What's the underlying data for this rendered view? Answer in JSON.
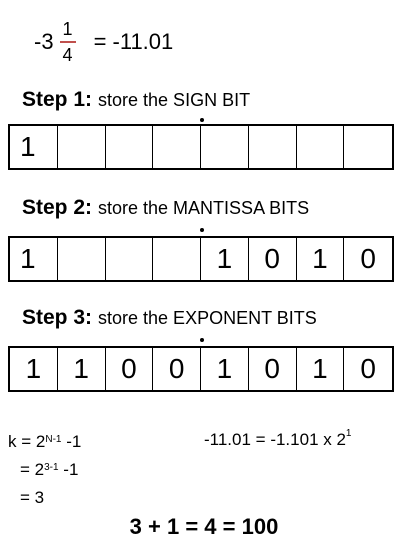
{
  "header": {
    "whole": "-3",
    "numerator": "1",
    "denominator": "4",
    "equals": "= -11.01"
  },
  "steps": [
    {
      "label": "Step 1:",
      "description": "store the SIGN BIT",
      "bits": [
        "1",
        "",
        "",
        "",
        "",
        "",
        "",
        ""
      ]
    },
    {
      "label": "Step 2:",
      "description": "store the MANTISSA BITS",
      "bits": [
        "1",
        "",
        "",
        "",
        "1",
        "0",
        "1",
        "0"
      ]
    },
    {
      "label": "Step 3:",
      "description": "store the EXPONENT BITS",
      "bits": [
        "1",
        "1",
        "0",
        "0",
        "1",
        "0",
        "1",
        "0"
      ]
    }
  ],
  "bias_calc": {
    "line1_prefix": "k = 2",
    "line1_exp": "N-1",
    "line1_suffix": " -1",
    "line2_prefix": "= 2",
    "line2_exp": "3-1",
    "line2_suffix": " -1",
    "line3": "= 3"
  },
  "normalized": {
    "text": "-11.01 = -1.101 x 2",
    "exp": "1"
  },
  "result": "3 + 1 = 4 = 100"
}
